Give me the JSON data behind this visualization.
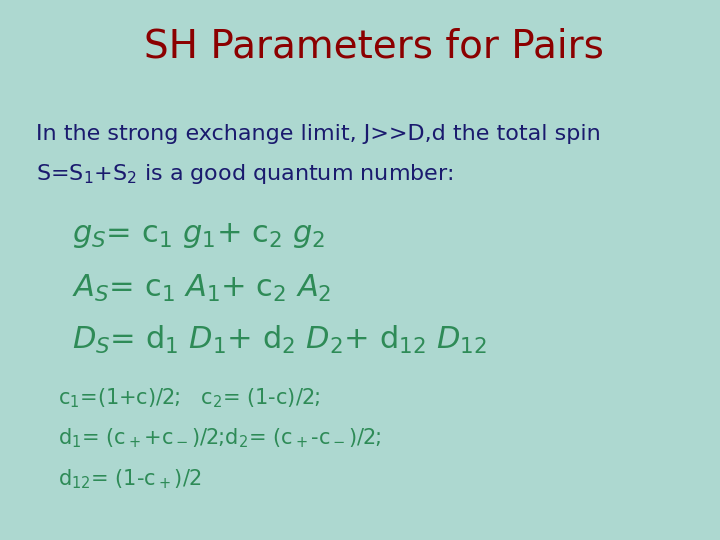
{
  "title": "SH Parameters for Pairs",
  "title_color": "#8B0000",
  "background_color": "#ADD8D0",
  "intro_text_color": "#1a1a6e",
  "green_color": "#2e8b57",
  "dark_green_color": "#2e8b57",
  "title_fontsize": 28,
  "body_fontsize": 16,
  "green_large_fontsize": 22,
  "green_small_fontsize": 15
}
